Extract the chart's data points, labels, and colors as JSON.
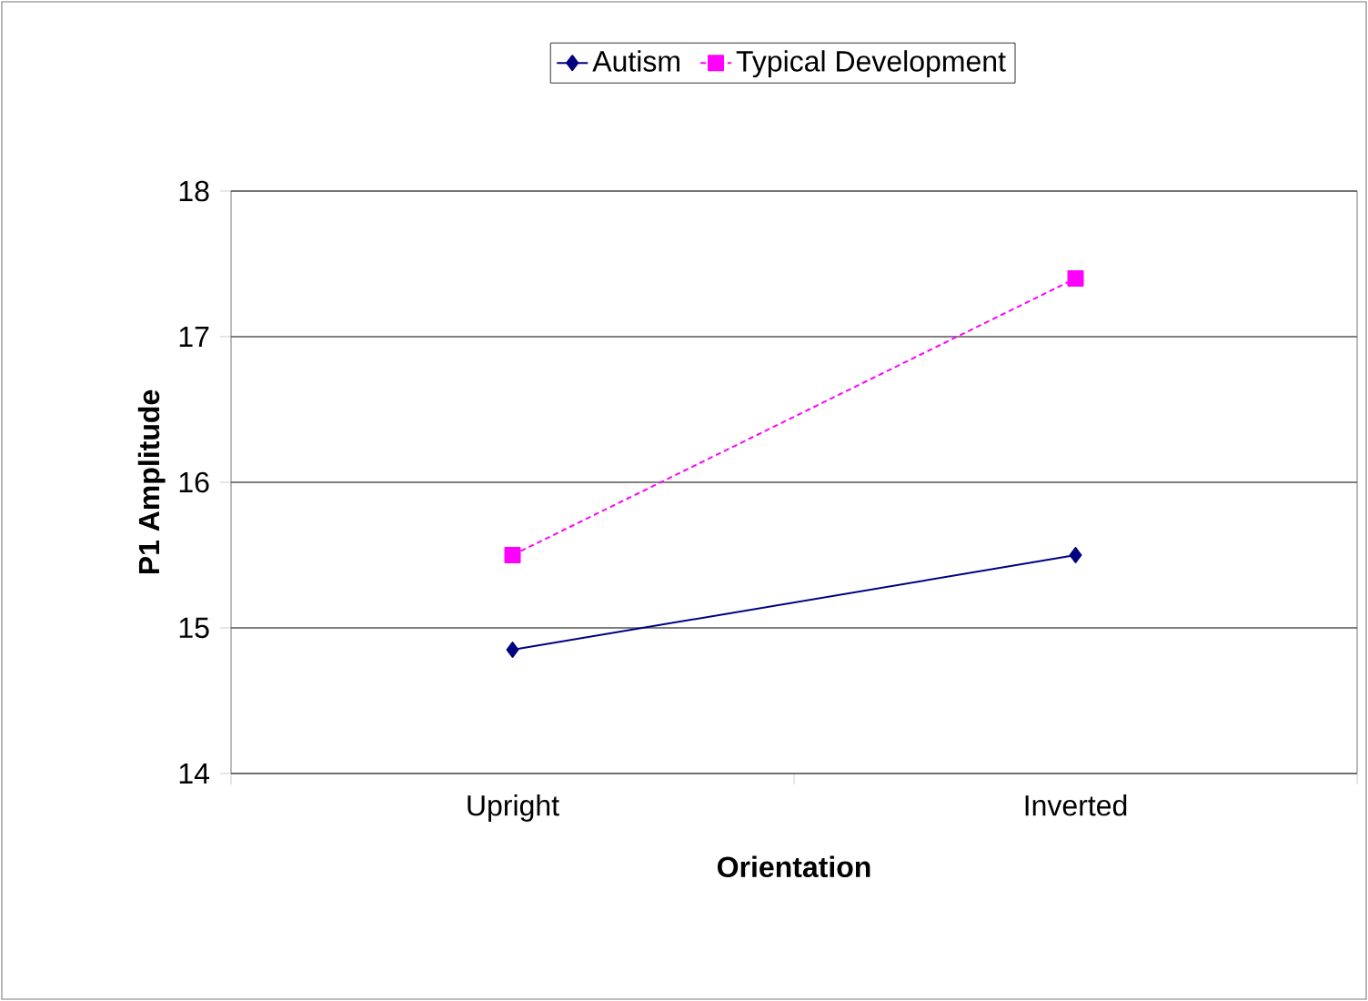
{
  "chart_data": {
    "type": "line",
    "xlabel": "Orientation",
    "ylabel": "P1 Amplitude",
    "categories": [
      "Upright",
      "Inverted"
    ],
    "series": [
      {
        "name": "Autism",
        "color": "#000080",
        "values": [
          14.85,
          15.5
        ],
        "marker": "diamond",
        "line_style": "solid"
      },
      {
        "name": "Typical Development",
        "color": "#ff00ff",
        "values": [
          15.5,
          17.4
        ],
        "marker": "square",
        "line_style": "dotted"
      }
    ],
    "ylim": [
      14,
      18
    ],
    "yticks": [
      14,
      15,
      16,
      17,
      18
    ],
    "grid": "y",
    "legend": "top"
  }
}
